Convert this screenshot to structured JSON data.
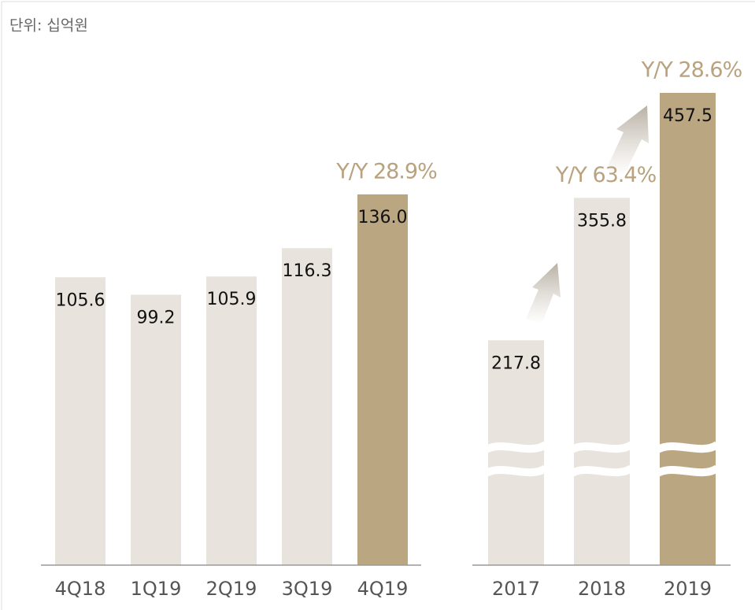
{
  "unit": "단위: 십억원",
  "chart_data": [
    {
      "type": "bar",
      "categories": [
        "4Q18",
        "1Q19",
        "2Q19",
        "3Q19",
        "4Q19"
      ],
      "values": [
        105.6,
        99.2,
        105.9,
        116.3,
        136.0
      ],
      "value_labels": [
        "105.6",
        "99.2",
        "105.9",
        "116.3",
        "136.0"
      ],
      "colors": [
        "#e8e3dc",
        "#e8e3dc",
        "#e8e3dc",
        "#e8e3dc",
        "#bba682"
      ],
      "annotations": [
        null,
        null,
        null,
        null,
        "Y/Y 28.9%"
      ],
      "annotation_color": "#b9a27f"
    },
    {
      "type": "bar",
      "categories": [
        "2017",
        "2018",
        "2019"
      ],
      "values": [
        217.8,
        355.8,
        457.5
      ],
      "value_labels": [
        "217.8",
        "355.8",
        "457.5"
      ],
      "colors": [
        "#e8e3dc",
        "#e8e3dc",
        "#bba682"
      ],
      "annotations": [
        null,
        "Y/Y 63.4%",
        "Y/Y 28.6%"
      ],
      "annotation_color": "#b9a27f",
      "axis_break": true
    }
  ]
}
